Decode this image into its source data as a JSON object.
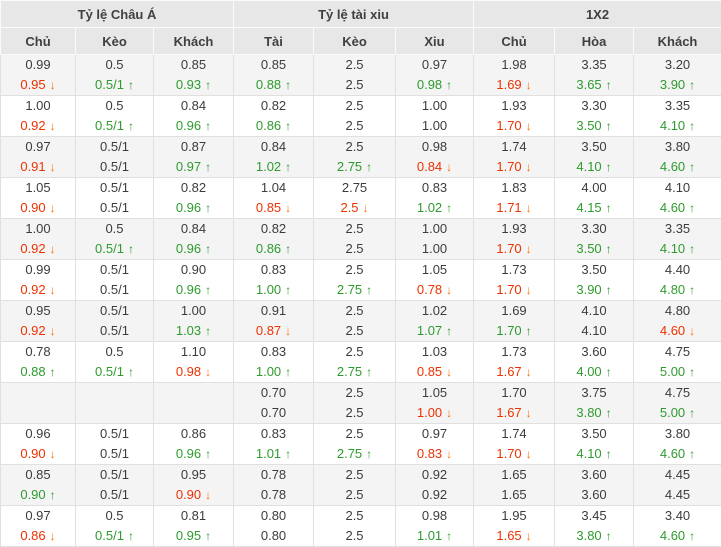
{
  "colors": {
    "trend_up_green": "#2e9b2e",
    "trend_down_red": "#ee3200",
    "trend_down_arrow_orange": "#ff6e00",
    "header_background": "#e7e7e7",
    "row_shade": "#f4f4f4",
    "text": "#3c3c3c"
  },
  "table": {
    "groups": [
      {
        "label": "Tỷ lệ Châu Á",
        "columns": [
          "Chủ",
          "Kèo",
          "Khách"
        ]
      },
      {
        "label": "Tỷ lệ tài xiu",
        "columns": [
          "Tài",
          "Kèo",
          "Xiu"
        ]
      },
      {
        "label": "1X2",
        "columns": [
          "Chủ",
          "Hòa",
          "Khách"
        ]
      }
    ],
    "rows": [
      {
        "cells": [
          {
            "top": "0.99",
            "bottom": "0.95",
            "trend": "down"
          },
          {
            "top": "0.5",
            "bottom": "0.5/1",
            "trend": "up"
          },
          {
            "top": "0.85",
            "bottom": "0.93",
            "trend": "up"
          },
          {
            "top": "0.85",
            "bottom": "0.88",
            "trend": "up"
          },
          {
            "top": "2.5",
            "bottom": "2.5",
            "trend": "none"
          },
          {
            "top": "0.97",
            "bottom": "0.98",
            "trend": "up"
          },
          {
            "top": "1.98",
            "bottom": "1.69",
            "trend": "down"
          },
          {
            "top": "3.35",
            "bottom": "3.65",
            "trend": "up"
          },
          {
            "top": "3.20",
            "bottom": "3.90",
            "trend": "up"
          }
        ]
      },
      {
        "cells": [
          {
            "top": "1.00",
            "bottom": "0.92",
            "trend": "down"
          },
          {
            "top": "0.5",
            "bottom": "0.5/1",
            "trend": "up"
          },
          {
            "top": "0.84",
            "bottom": "0.96",
            "trend": "up"
          },
          {
            "top": "0.82",
            "bottom": "0.86",
            "trend": "up"
          },
          {
            "top": "2.5",
            "bottom": "2.5",
            "trend": "none"
          },
          {
            "top": "1.00",
            "bottom": "1.00",
            "trend": "none"
          },
          {
            "top": "1.93",
            "bottom": "1.70",
            "trend": "down"
          },
          {
            "top": "3.30",
            "bottom": "3.50",
            "trend": "up"
          },
          {
            "top": "3.35",
            "bottom": "4.10",
            "trend": "up"
          }
        ]
      },
      {
        "cells": [
          {
            "top": "0.97",
            "bottom": "0.91",
            "trend": "down"
          },
          {
            "top": "0.5/1",
            "bottom": "0.5/1",
            "trend": "none"
          },
          {
            "top": "0.87",
            "bottom": "0.97",
            "trend": "up"
          },
          {
            "top": "0.84",
            "bottom": "1.02",
            "trend": "up"
          },
          {
            "top": "2.5",
            "bottom": "2.75",
            "trend": "up"
          },
          {
            "top": "0.98",
            "bottom": "0.84",
            "trend": "down"
          },
          {
            "top": "1.74",
            "bottom": "1.70",
            "trend": "down"
          },
          {
            "top": "3.50",
            "bottom": "4.10",
            "trend": "up"
          },
          {
            "top": "3.80",
            "bottom": "4.60",
            "trend": "up"
          }
        ]
      },
      {
        "cells": [
          {
            "top": "1.05",
            "bottom": "0.90",
            "trend": "down"
          },
          {
            "top": "0.5/1",
            "bottom": "0.5/1",
            "trend": "none"
          },
          {
            "top": "0.82",
            "bottom": "0.96",
            "trend": "up"
          },
          {
            "top": "1.04",
            "bottom": "0.85",
            "trend": "down"
          },
          {
            "top": "2.75",
            "bottom": "2.5",
            "trend": "down"
          },
          {
            "top": "0.83",
            "bottom": "1.02",
            "trend": "up"
          },
          {
            "top": "1.83",
            "bottom": "1.71",
            "trend": "down"
          },
          {
            "top": "4.00",
            "bottom": "4.15",
            "trend": "up"
          },
          {
            "top": "4.10",
            "bottom": "4.60",
            "trend": "up"
          }
        ]
      },
      {
        "cells": [
          {
            "top": "1.00",
            "bottom": "0.92",
            "trend": "down"
          },
          {
            "top": "0.5",
            "bottom": "0.5/1",
            "trend": "up"
          },
          {
            "top": "0.84",
            "bottom": "0.96",
            "trend": "up"
          },
          {
            "top": "0.82",
            "bottom": "0.86",
            "trend": "up"
          },
          {
            "top": "2.5",
            "bottom": "2.5",
            "trend": "none"
          },
          {
            "top": "1.00",
            "bottom": "1.00",
            "trend": "none"
          },
          {
            "top": "1.93",
            "bottom": "1.70",
            "trend": "down"
          },
          {
            "top": "3.30",
            "bottom": "3.50",
            "trend": "up"
          },
          {
            "top": "3.35",
            "bottom": "4.10",
            "trend": "up"
          }
        ]
      },
      {
        "cells": [
          {
            "top": "0.99",
            "bottom": "0.92",
            "trend": "down"
          },
          {
            "top": "0.5/1",
            "bottom": "0.5/1",
            "trend": "none"
          },
          {
            "top": "0.90",
            "bottom": "0.96",
            "trend": "up"
          },
          {
            "top": "0.83",
            "bottom": "1.00",
            "trend": "up"
          },
          {
            "top": "2.5",
            "bottom": "2.75",
            "trend": "up"
          },
          {
            "top": "1.05",
            "bottom": "0.78",
            "trend": "down"
          },
          {
            "top": "1.73",
            "bottom": "1.70",
            "trend": "down"
          },
          {
            "top": "3.50",
            "bottom": "3.90",
            "trend": "up"
          },
          {
            "top": "4.40",
            "bottom": "4.80",
            "trend": "up"
          }
        ]
      },
      {
        "cells": [
          {
            "top": "0.95",
            "bottom": "0.92",
            "trend": "down"
          },
          {
            "top": "0.5/1",
            "bottom": "0.5/1",
            "trend": "none"
          },
          {
            "top": "1.00",
            "bottom": "1.03",
            "trend": "up"
          },
          {
            "top": "0.91",
            "bottom": "0.87",
            "trend": "down"
          },
          {
            "top": "2.5",
            "bottom": "2.5",
            "trend": "none"
          },
          {
            "top": "1.02",
            "bottom": "1.07",
            "trend": "up"
          },
          {
            "top": "1.69",
            "bottom": "1.70",
            "trend": "up"
          },
          {
            "top": "4.10",
            "bottom": "4.10",
            "trend": "none"
          },
          {
            "top": "4.80",
            "bottom": "4.60",
            "trend": "down"
          }
        ]
      },
      {
        "cells": [
          {
            "top": "0.78",
            "bottom": "0.88",
            "trend": "up"
          },
          {
            "top": "0.5",
            "bottom": "0.5/1",
            "trend": "up"
          },
          {
            "top": "1.10",
            "bottom": "0.98",
            "trend": "down"
          },
          {
            "top": "0.83",
            "bottom": "1.00",
            "trend": "up"
          },
          {
            "top": "2.5",
            "bottom": "2.75",
            "trend": "up"
          },
          {
            "top": "1.03",
            "bottom": "0.85",
            "trend": "down"
          },
          {
            "top": "1.73",
            "bottom": "1.67",
            "trend": "down"
          },
          {
            "top": "3.60",
            "bottom": "4.00",
            "trend": "up"
          },
          {
            "top": "4.75",
            "bottom": "5.00",
            "trend": "up"
          }
        ]
      },
      {
        "cells": [
          null,
          null,
          null,
          {
            "top": "0.70",
            "bottom": "0.70",
            "trend": "none"
          },
          {
            "top": "2.5",
            "bottom": "2.5",
            "trend": "none"
          },
          {
            "top": "1.05",
            "bottom": "1.00",
            "trend": "down"
          },
          {
            "top": "1.70",
            "bottom": "1.67",
            "trend": "down"
          },
          {
            "top": "3.75",
            "bottom": "3.80",
            "trend": "up"
          },
          {
            "top": "4.75",
            "bottom": "5.00",
            "trend": "up"
          }
        ]
      },
      {
        "cells": [
          {
            "top": "0.96",
            "bottom": "0.90",
            "trend": "down"
          },
          {
            "top": "0.5/1",
            "bottom": "0.5/1",
            "trend": "none"
          },
          {
            "top": "0.86",
            "bottom": "0.96",
            "trend": "up"
          },
          {
            "top": "0.83",
            "bottom": "1.01",
            "trend": "up"
          },
          {
            "top": "2.5",
            "bottom": "2.75",
            "trend": "up"
          },
          {
            "top": "0.97",
            "bottom": "0.83",
            "trend": "down"
          },
          {
            "top": "1.74",
            "bottom": "1.70",
            "trend": "down"
          },
          {
            "top": "3.50",
            "bottom": "4.10",
            "trend": "up"
          },
          {
            "top": "3.80",
            "bottom": "4.60",
            "trend": "up"
          }
        ]
      },
      {
        "cells": [
          {
            "top": "0.85",
            "bottom": "0.90",
            "trend": "up"
          },
          {
            "top": "0.5/1",
            "bottom": "0.5/1",
            "trend": "none"
          },
          {
            "top": "0.95",
            "bottom": "0.90",
            "trend": "down"
          },
          {
            "top": "0.78",
            "bottom": "0.78",
            "trend": "none"
          },
          {
            "top": "2.5",
            "bottom": "2.5",
            "trend": "none"
          },
          {
            "top": "0.92",
            "bottom": "0.92",
            "trend": "none"
          },
          {
            "top": "1.65",
            "bottom": "1.65",
            "trend": "none"
          },
          {
            "top": "3.60",
            "bottom": "3.60",
            "trend": "none"
          },
          {
            "top": "4.45",
            "bottom": "4.45",
            "trend": "none"
          }
        ]
      },
      {
        "cells": [
          {
            "top": "0.97",
            "bottom": "0.86",
            "trend": "down"
          },
          {
            "top": "0.5",
            "bottom": "0.5/1",
            "trend": "up"
          },
          {
            "top": "0.81",
            "bottom": "0.95",
            "trend": "up"
          },
          {
            "top": "0.80",
            "bottom": "0.80",
            "trend": "none"
          },
          {
            "top": "2.5",
            "bottom": "2.5",
            "trend": "none"
          },
          {
            "top": "0.98",
            "bottom": "1.01",
            "trend": "up"
          },
          {
            "top": "1.95",
            "bottom": "1.65",
            "trend": "down"
          },
          {
            "top": "3.45",
            "bottom": "3.80",
            "trend": "up"
          },
          {
            "top": "3.40",
            "bottom": "4.60",
            "trend": "up"
          }
        ]
      }
    ]
  }
}
